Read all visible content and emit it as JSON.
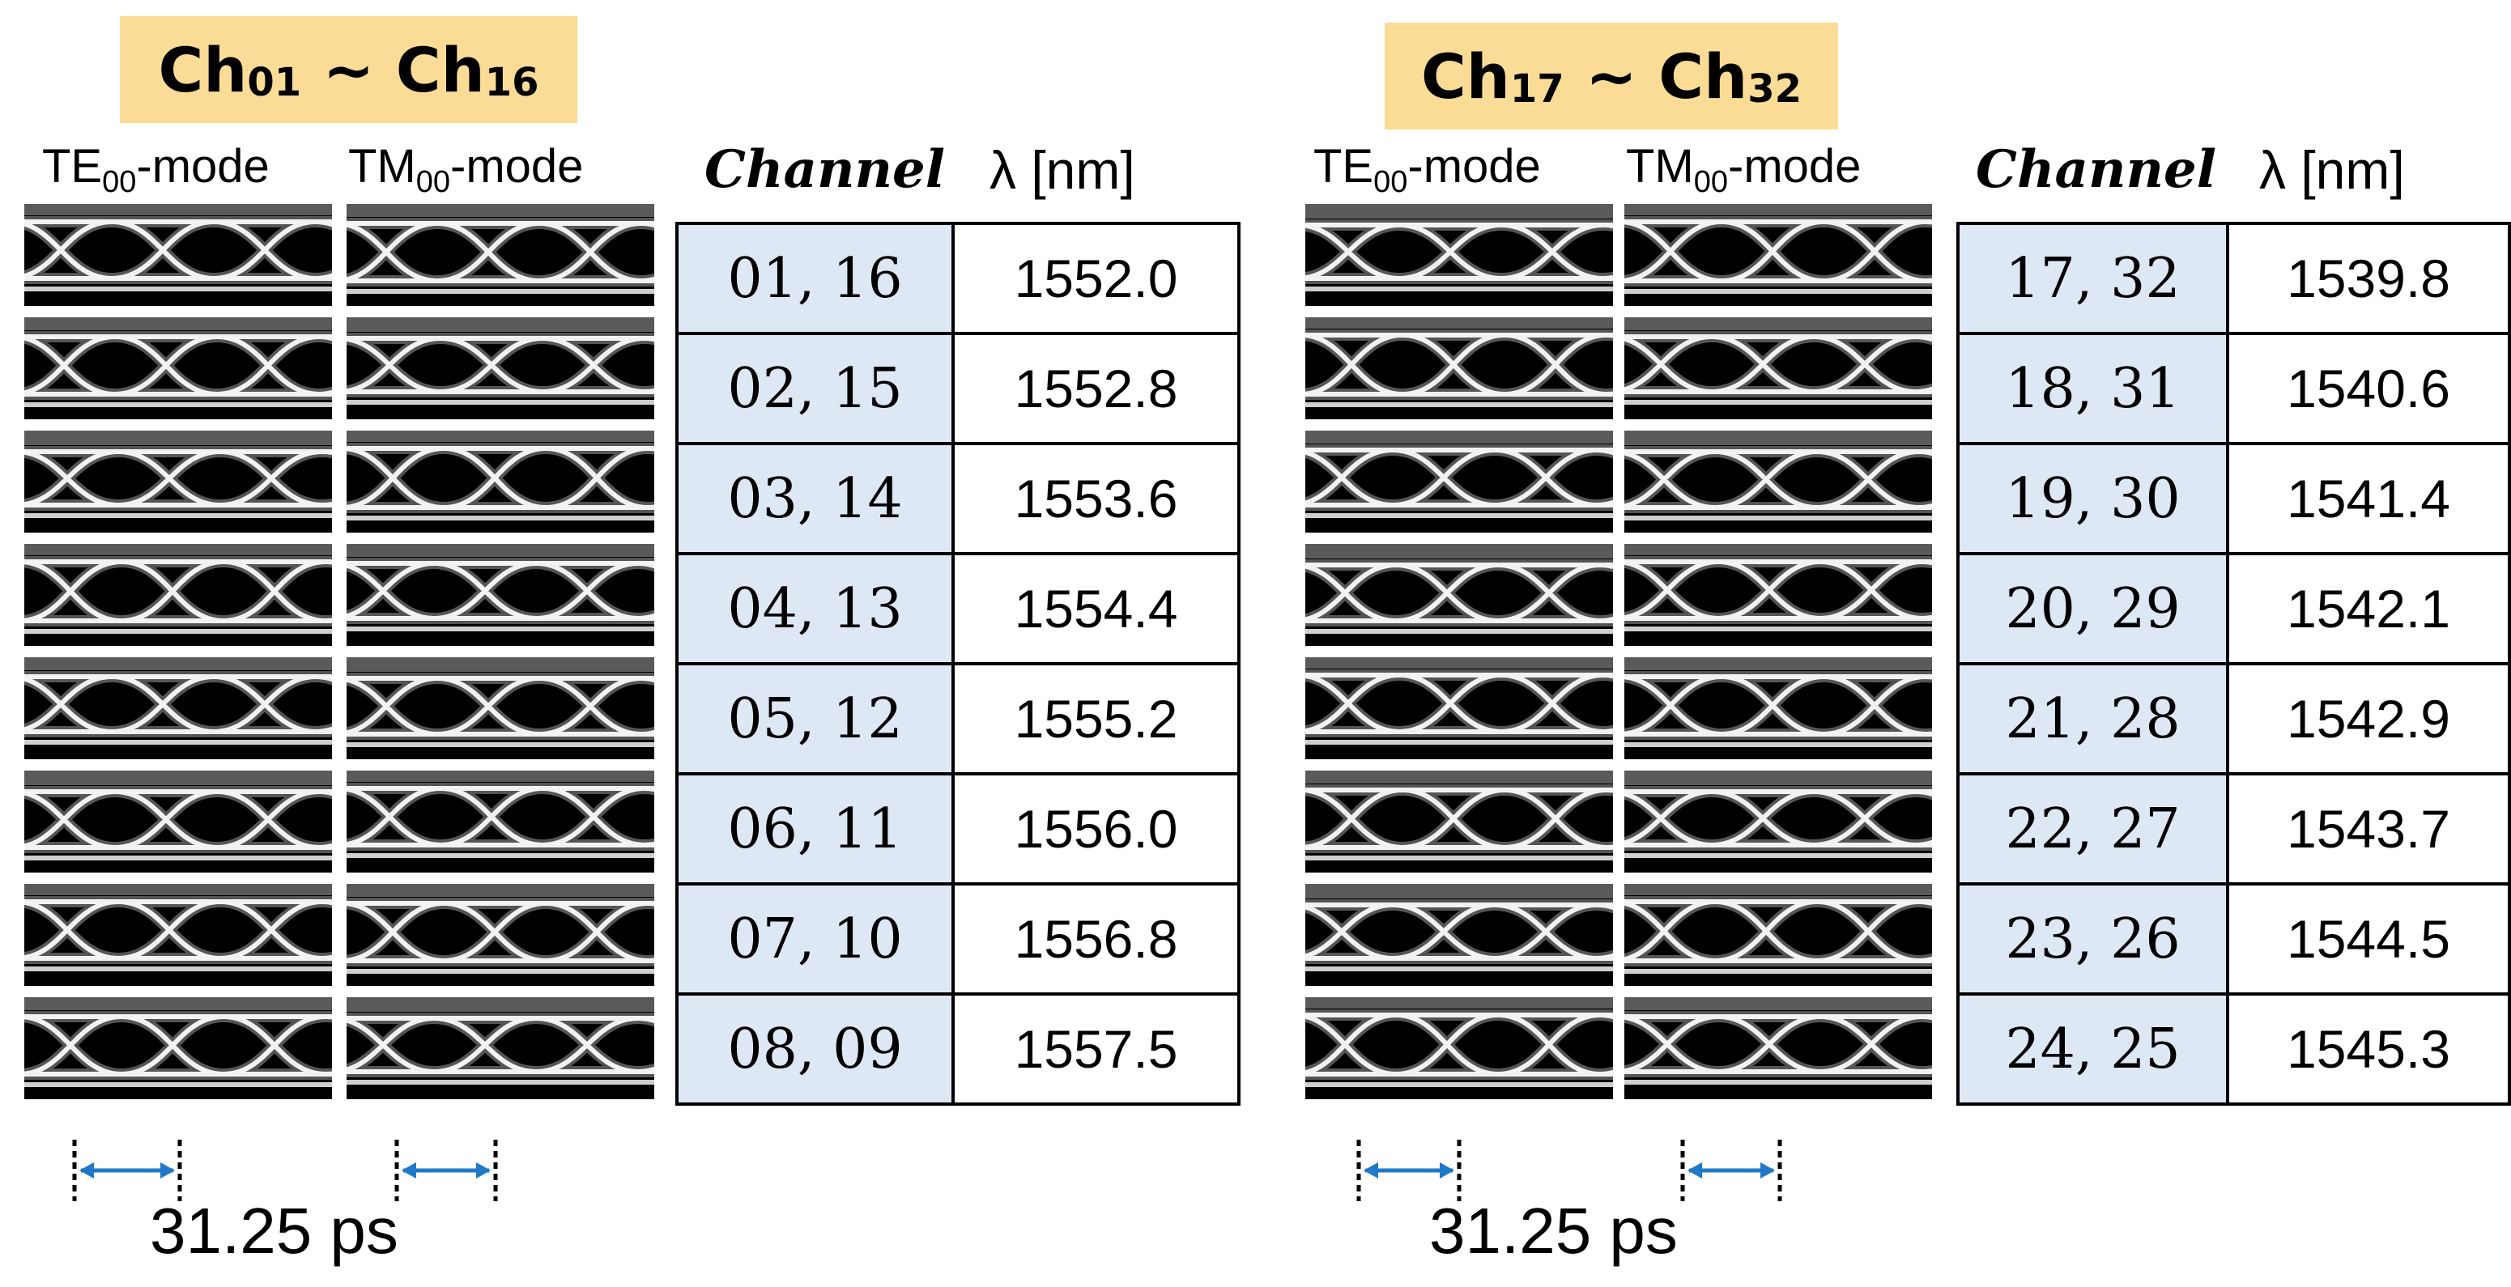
{
  "panels": [
    {
      "title": {
        "prefix1": "Ch",
        "sub1": "01",
        "sep": " ~ ",
        "prefix2": "Ch",
        "sub2": "16"
      },
      "te_mode": {
        "base": "TE",
        "sub": "00",
        "suffix": "-mode"
      },
      "tm_mode": {
        "base": "TM",
        "sub": "00",
        "suffix": "-mode"
      },
      "table_headers": {
        "channel": "Channel",
        "wavelength": "λ [nm]"
      },
      "rows": [
        {
          "channel": "01, 16",
          "wavelength": "1552.0"
        },
        {
          "channel": "02, 15",
          "wavelength": "1552.8"
        },
        {
          "channel": "03, 14",
          "wavelength": "1553.6"
        },
        {
          "channel": "04, 13",
          "wavelength": "1554.4"
        },
        {
          "channel": "05, 12",
          "wavelength": "1555.2"
        },
        {
          "channel": "06, 11",
          "wavelength": "1556.0"
        },
        {
          "channel": "07, 10",
          "wavelength": "1556.8"
        },
        {
          "channel": "08, 09",
          "wavelength": "1557.5"
        }
      ],
      "time_scale": "31.25 ps"
    },
    {
      "title": {
        "prefix1": "Ch",
        "sub1": "17",
        "sep": " ~ ",
        "prefix2": "Ch",
        "sub2": "32"
      },
      "te_mode": {
        "base": "TE",
        "sub": "00",
        "suffix": "-mode"
      },
      "tm_mode": {
        "base": "TM",
        "sub": "00",
        "suffix": "-mode"
      },
      "table_headers": {
        "channel": "Channel",
        "wavelength": "λ [nm]"
      },
      "rows": [
        {
          "channel": "17, 32",
          "wavelength": "1539.8"
        },
        {
          "channel": "18, 31",
          "wavelength": "1540.6"
        },
        {
          "channel": "19, 30",
          "wavelength": "1541.4"
        },
        {
          "channel": "20, 29",
          "wavelength": "1542.1"
        },
        {
          "channel": "21, 28",
          "wavelength": "1542.9"
        },
        {
          "channel": "22, 27",
          "wavelength": "1543.7"
        },
        {
          "channel": "23, 26",
          "wavelength": "1544.5"
        },
        {
          "channel": "24, 25",
          "wavelength": "1545.3"
        }
      ],
      "time_scale": "31.25 ps"
    }
  ],
  "colors": {
    "title_bg": "#fbdc96",
    "channel_cell_bg": "#dde8f4",
    "arrow": "#1f78c8",
    "eye_bg": "#000000"
  }
}
